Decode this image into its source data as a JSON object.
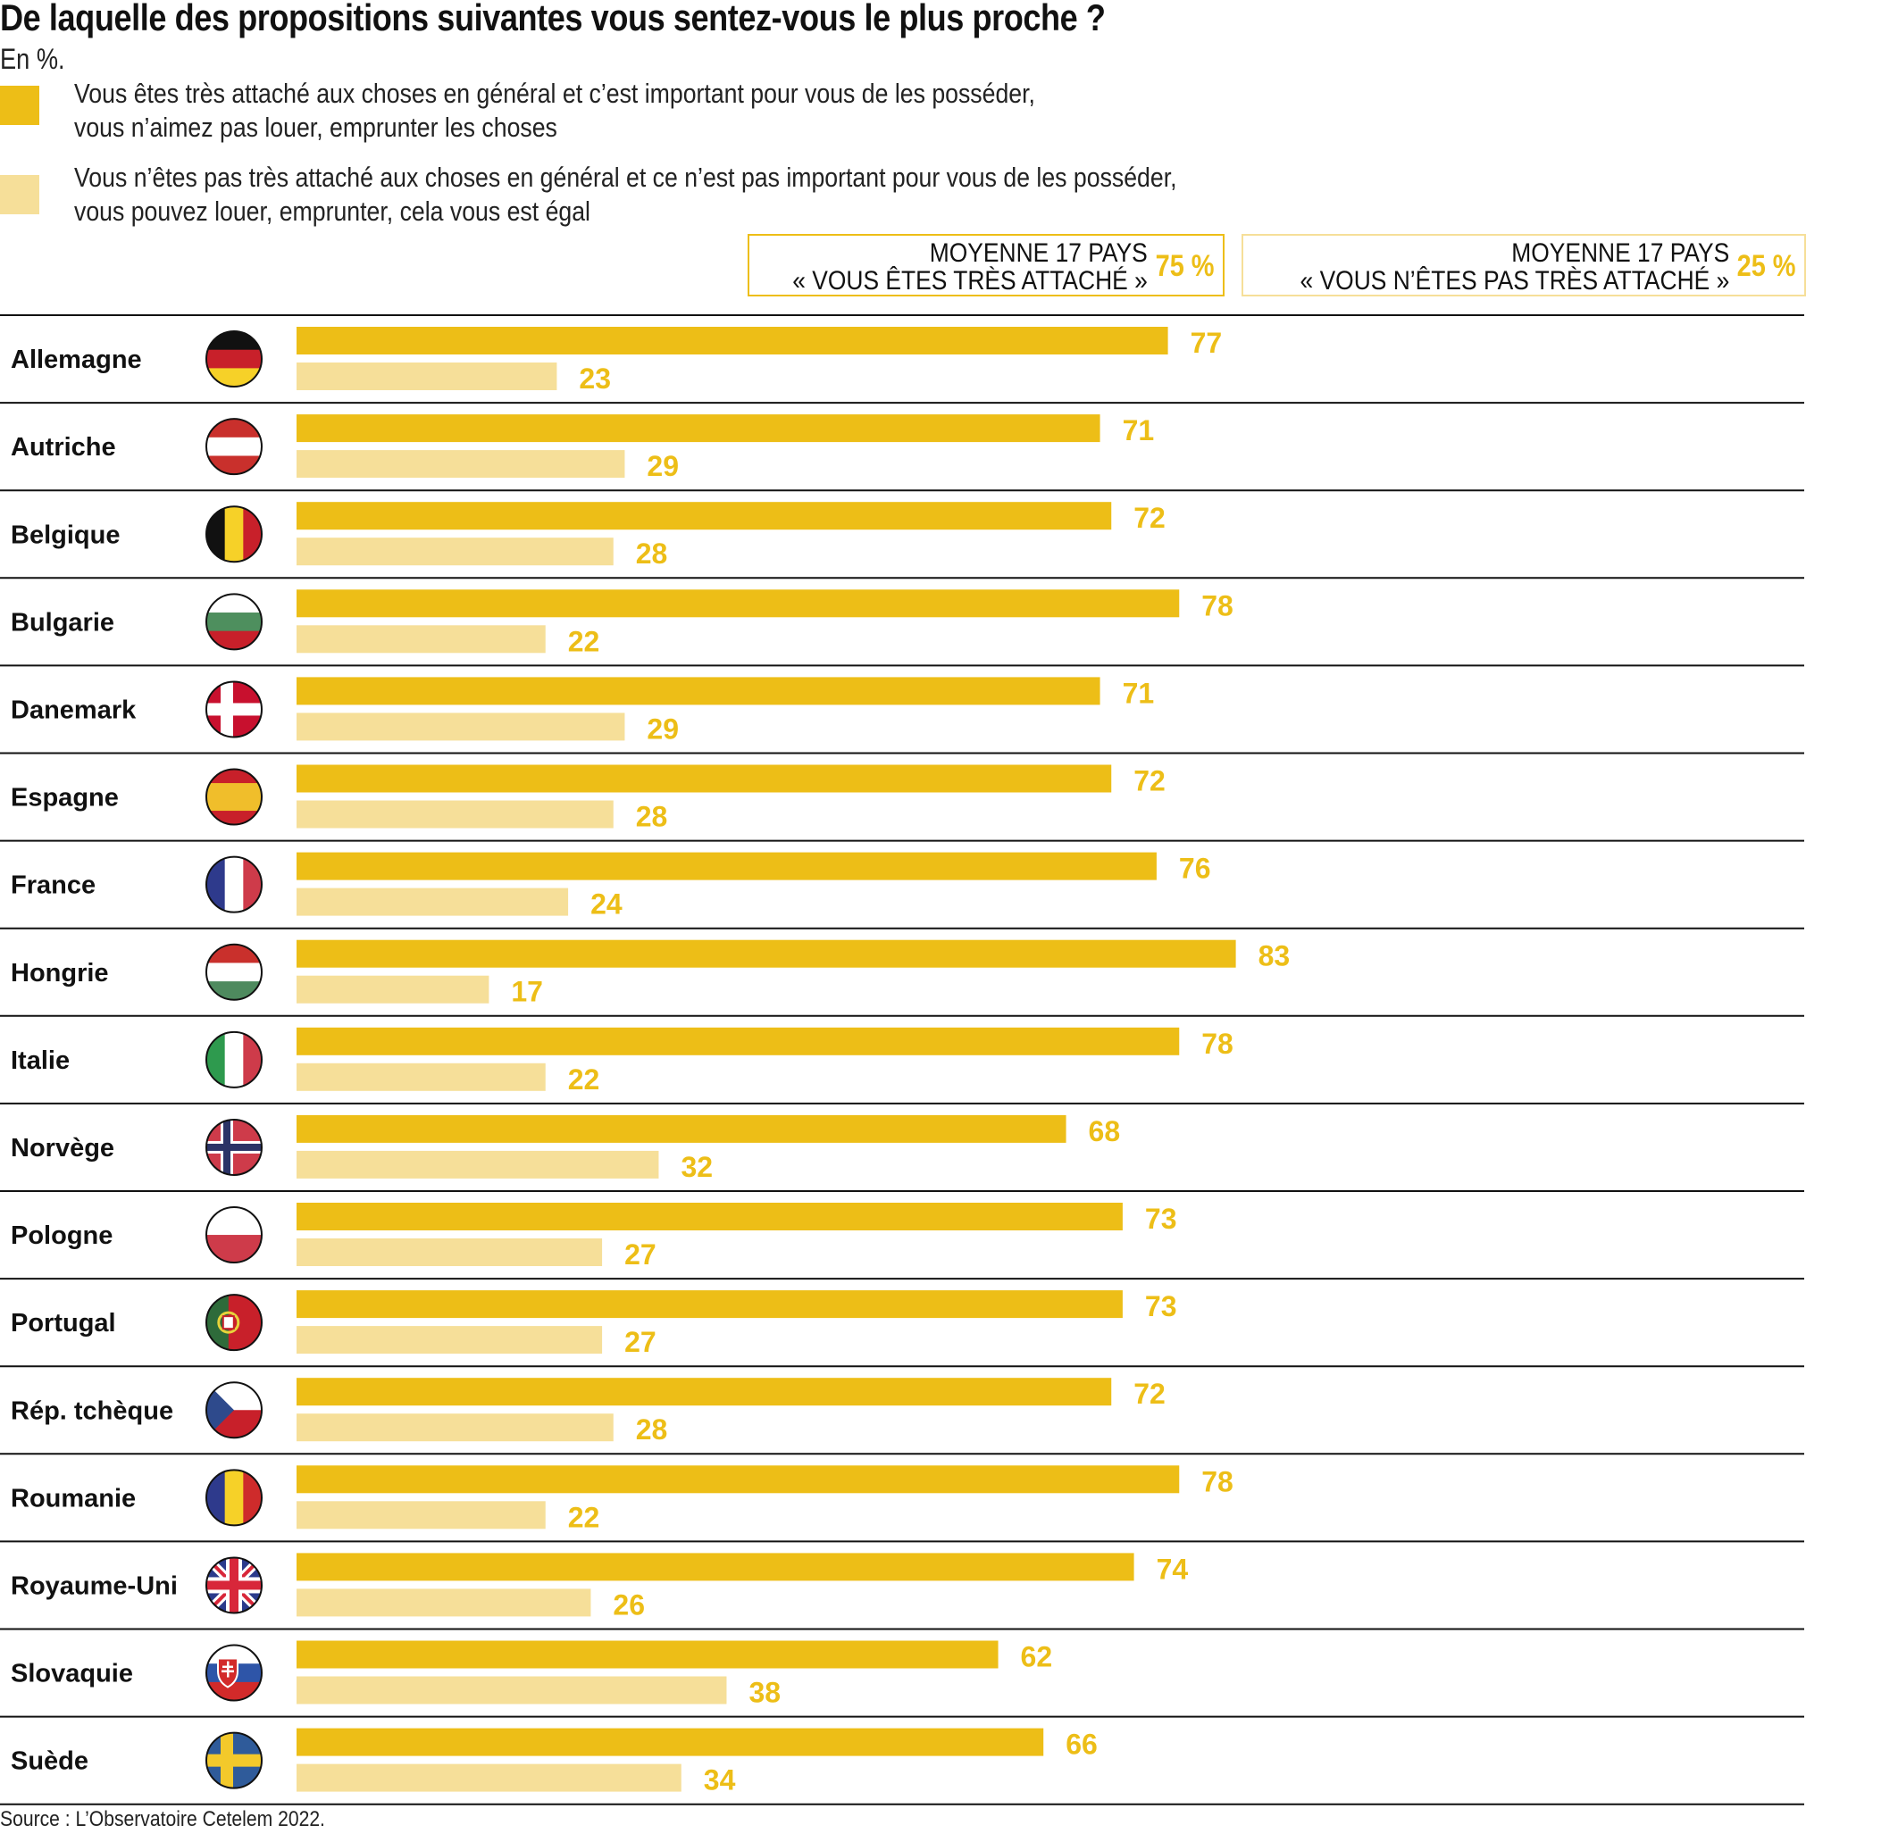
{
  "title": "De laquelle des propositions suivantes vous sentez-vous le plus proche ?",
  "subtitle": "En %.",
  "colors": {
    "attached": "#EDBE17",
    "not_attached": "#F6DF99",
    "value_text": "#EDBE17"
  },
  "legend": [
    {
      "line1": "Vous êtes très attaché aux choses en général et c’est important pour vous de les posséder,",
      "line2": "vous n’aimez pas louer, emprunter les choses"
    },
    {
      "line1": "Vous n’êtes pas très attaché aux choses en général et ce n’est pas important pour vous de les posséder,",
      "line2": "vous pouvez louer, emprunter, cela vous est égal"
    }
  ],
  "averages": [
    {
      "line1": "MOYENNE 17 PAYS",
      "line2": "« VOUS ÊTES TRÈS ATTACHÉ »",
      "value": "75 %"
    },
    {
      "line1": "MOYENNE 17 PAYS",
      "line2": "« VOUS N’ÊTES PAS TRÈS ATTACHÉ »",
      "value": "25 %"
    }
  ],
  "source": "Source : L’Observatoire Cetelem 2022.",
  "chart_data": {
    "type": "bar",
    "orientation": "horizontal",
    "title": "De laquelle des propositions suivantes vous sentez-vous le plus proche ?",
    "subtitle": "En %.",
    "xlabel": "",
    "ylabel": "",
    "xlim": [
      0,
      100
    ],
    "grid": false,
    "categories": [
      "Allemagne",
      "Autriche",
      "Belgique",
      "Bulgarie",
      "Danemark",
      "Espagne",
      "France",
      "Hongrie",
      "Italie",
      "Norvège",
      "Pologne",
      "Portugal",
      "Rép. tchèque",
      "Roumanie",
      "Royaume-Uni",
      "Slovaquie",
      "Suède"
    ],
    "flags": [
      "flag-germany",
      "flag-austria",
      "flag-belgium",
      "flag-bulgaria",
      "flag-denmark",
      "flag-spain",
      "flag-france",
      "flag-hungary",
      "flag-italy",
      "flag-norway",
      "flag-poland",
      "flag-portugal",
      "flag-czech-republic",
      "flag-romania",
      "flag-united-kingdom",
      "flag-slovakia",
      "flag-sweden"
    ],
    "series": [
      {
        "name": "Vous êtes très attaché aux choses",
        "values": [
          77,
          71,
          72,
          78,
          71,
          72,
          76,
          83,
          78,
          68,
          73,
          73,
          72,
          78,
          74,
          62,
          66
        ]
      },
      {
        "name": "Vous n’êtes pas très attaché aux choses",
        "values": [
          23,
          29,
          28,
          22,
          29,
          28,
          24,
          17,
          22,
          32,
          27,
          27,
          28,
          22,
          26,
          38,
          34
        ]
      }
    ],
    "averages": {
      "Vous êtes très attaché": 75,
      "Vous n’êtes pas très attaché": 25
    },
    "legend_position": "top-left"
  }
}
